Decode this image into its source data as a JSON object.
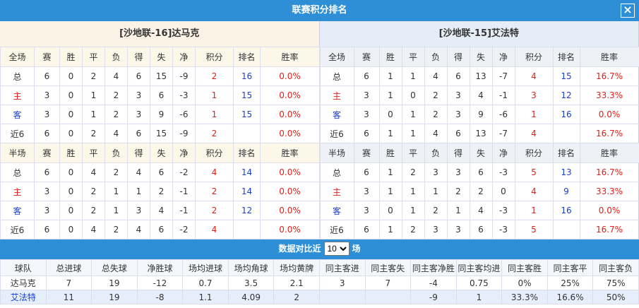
{
  "title": "联赛积分排名",
  "teams": [
    {
      "name": "[沙地联-16]达马克",
      "sections": [
        {
          "columns": [
            "全场",
            "赛",
            "胜",
            "平",
            "负",
            "得",
            "失",
            "净",
            "积分",
            "排名",
            "胜率"
          ],
          "rows": [
            [
              "总",
              "6",
              "0",
              "2",
              "4",
              "6",
              "15",
              "-9",
              "2",
              "16",
              "0.0%"
            ],
            [
              "主",
              "3",
              "0",
              "1",
              "2",
              "3",
              "6",
              "-3",
              "1",
              "15",
              "0.0%"
            ],
            [
              "客",
              "3",
              "0",
              "1",
              "2",
              "3",
              "9",
              "-6",
              "1",
              "15",
              "0.0%"
            ],
            [
              "近6",
              "6",
              "0",
              "2",
              "4",
              "6",
              "15",
              "-9",
              "2",
              null,
              "0.0%"
            ]
          ]
        },
        {
          "columns": [
            "半场",
            "赛",
            "胜",
            "平",
            "负",
            "得",
            "失",
            "净",
            "积分",
            "排名",
            "胜率"
          ],
          "rows": [
            [
              "总",
              "6",
              "0",
              "4",
              "2",
              "4",
              "6",
              "-2",
              "4",
              "14",
              "0.0%"
            ],
            [
              "主",
              "3",
              "0",
              "2",
              "1",
              "1",
              "2",
              "-1",
              "2",
              "14",
              "0.0%"
            ],
            [
              "客",
              "3",
              "0",
              "2",
              "1",
              "3",
              "4",
              "-1",
              "2",
              "12",
              "0.0%"
            ],
            [
              "近6",
              "6",
              "0",
              "4",
              "2",
              "4",
              "6",
              "-2",
              "4",
              null,
              "0.0%"
            ]
          ]
        }
      ]
    },
    {
      "name": "[沙地联-15]艾法特",
      "sections": [
        {
          "columns": [
            "全场",
            "赛",
            "胜",
            "平",
            "负",
            "得",
            "失",
            "净",
            "积分",
            "排名",
            "胜率"
          ],
          "rows": [
            [
              "总",
              "6",
              "1",
              "1",
              "4",
              "6",
              "13",
              "-7",
              "4",
              "15",
              "16.7%"
            ],
            [
              "主",
              "3",
              "1",
              "0",
              "2",
              "3",
              "4",
              "-1",
              "3",
              "12",
              "33.3%"
            ],
            [
              "客",
              "3",
              "0",
              "1",
              "2",
              "3",
              "9",
              "-6",
              "1",
              "16",
              "0.0%"
            ],
            [
              "近6",
              "6",
              "1",
              "1",
              "4",
              "6",
              "13",
              "-7",
              "4",
              null,
              "16.7%"
            ]
          ]
        },
        {
          "columns": [
            "半场",
            "赛",
            "胜",
            "平",
            "负",
            "得",
            "失",
            "净",
            "积分",
            "排名",
            "胜率"
          ],
          "rows": [
            [
              "总",
              "6",
              "1",
              "2",
              "3",
              "3",
              "6",
              "-3",
              "5",
              "13",
              "16.7%"
            ],
            [
              "主",
              "3",
              "1",
              "1",
              "1",
              "2",
              "2",
              "0",
              "4",
              "9",
              "33.3%"
            ],
            [
              "客",
              "3",
              "0",
              "1",
              "2",
              "1",
              "4",
              "-3",
              "1",
              "16",
              "0.0%"
            ],
            [
              "近6",
              "6",
              "1",
              "2",
              "3",
              "3",
              "6",
              "-3",
              "5",
              null,
              "16.7%"
            ]
          ]
        }
      ]
    }
  ],
  "comparison": {
    "label_before": "数据对比近",
    "select": "10",
    "label_after": "场",
    "columns": [
      "球队",
      "总进球",
      "总失球",
      "净胜球",
      "场均进球",
      "场均角球",
      "场均黄牌",
      "同主客进",
      "同主客失",
      "同主客净胜",
      "同主客均进",
      "同主客胜",
      "同主客平",
      "同主客负"
    ],
    "rows": [
      [
        "达马克",
        "7",
        "19",
        "-12",
        "0.7",
        "3.5",
        "2.1",
        "3",
        "7",
        "-4",
        "0.75",
        "0%",
        "25%",
        "75%"
      ],
      [
        "艾法特",
        "11",
        "19",
        "-8",
        "1.1",
        "4.09",
        "2",
        null,
        null,
        "-9",
        "1",
        "33.3%",
        "16.6%",
        "50%"
      ]
    ]
  }
}
